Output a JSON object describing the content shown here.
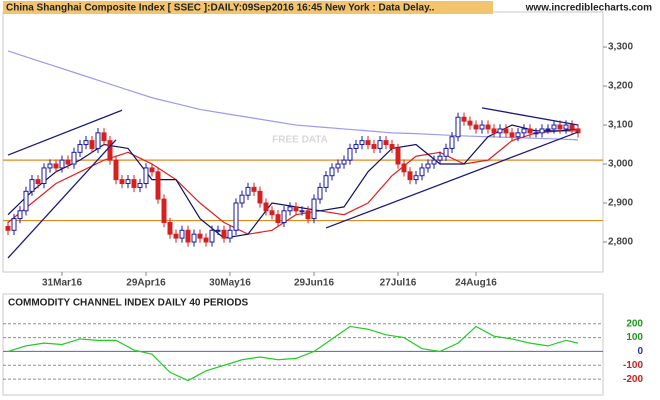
{
  "chart_data": {
    "type": "candlestick",
    "title": "China Shanghai Composite Index [ SSEC ]:DAILY:09Sep2016 16:45 New York : Data Delay..",
    "source": "www.incrediblecharts.com",
    "watermark": "FREE DATA",
    "categories": [
      null,
      null,
      null,
      null,
      null,
      null,
      null,
      null,
      null,
      "31Mar16",
      null,
      null,
      null,
      null,
      null,
      null,
      null,
      null,
      null,
      null,
      null,
      null,
      null,
      "29Apr16",
      null,
      null,
      null,
      null,
      null,
      null,
      null,
      null,
      null,
      null,
      null,
      null,
      null,
      "30May16",
      null,
      null,
      null,
      null,
      null,
      null,
      null,
      null,
      null,
      null,
      null,
      null,
      null,
      "29Jun16",
      null,
      null,
      null,
      null,
      null,
      null,
      null,
      null,
      null,
      null,
      null,
      null,
      null,
      "27Jul16",
      null,
      null,
      null,
      null,
      null,
      null,
      null,
      null,
      null,
      null,
      null,
      null,
      "24Aug16",
      null,
      null,
      null,
      null,
      null,
      null,
      null,
      null,
      null,
      null,
      null,
      null,
      null,
      null,
      null,
      null,
      null
    ],
    "open": [
      2840,
      2830,
      2860,
      2880,
      2930,
      2960,
      2950,
      2990,
      3000,
      2990,
      3010,
      3000,
      3030,
      3050,
      3060,
      3040,
      3080,
      3060,
      3010,
      2960,
      2950,
      2960,
      2940,
      2950,
      2990,
      2980,
      2910,
      2850,
      2820,
      2810,
      2830,
      2800,
      2820,
      2810,
      2800,
      2830,
      2830,
      2810,
      2830,
      2900,
      2920,
      2940,
      2930,
      2900,
      2880,
      2870,
      2850,
      2880,
      2890,
      2880,
      2880,
      2860,
      2910,
      2940,
      2970,
      2990,
      3000,
      3010,
      3040,
      3050,
      3060,
      3050,
      3040,
      3060,
      3050,
      3040,
      3000,
      2980,
      2960,
      2970,
      2990,
      3000,
      3010,
      3020,
      3040,
      3070,
      3120,
      3110,
      3100,
      3090,
      3100,
      3090,
      3080,
      3090,
      3080,
      3070,
      3080,
      3090,
      3080,
      3080,
      3090,
      3090,
      3100,
      3090,
      3100,
      3090
    ],
    "high": [
      2852,
      2872,
      2892,
      2942,
      2972,
      2972,
      3002,
      3012,
      3012,
      3022,
      3022,
      3042,
      3062,
      3072,
      3072,
      3092,
      3092,
      3072,
      3022,
      2972,
      2972,
      2972,
      2962,
      3002,
      3002,
      2992,
      2922,
      2862,
      2832,
      2842,
      2842,
      2832,
      2832,
      2822,
      2842,
      2842,
      2842,
      2842,
      2912,
      2932,
      2952,
      2952,
      2942,
      2912,
      2892,
      2882,
      2892,
      2902,
      2902,
      2892,
      2892,
      2922,
      2952,
      2982,
      3002,
      3012,
      3022,
      3052,
      3062,
      3072,
      3072,
      3062,
      3072,
      3072,
      3062,
      3052,
      3012,
      2992,
      2982,
      3002,
      3012,
      3022,
      3032,
      3052,
      3082,
      3132,
      3132,
      3122,
      3112,
      3112,
      3112,
      3102,
      3102,
      3102,
      3092,
      3092,
      3102,
      3102,
      3092,
      3102,
      3102,
      3112,
      3112,
      3112,
      3112,
      3102
    ],
    "low": [
      2818,
      2818,
      2848,
      2868,
      2918,
      2938,
      2938,
      2978,
      2978,
      2978,
      2988,
      2988,
      3018,
      3038,
      3028,
      3028,
      3048,
      2998,
      2948,
      2938,
      2938,
      2928,
      2928,
      2938,
      2968,
      2898,
      2838,
      2808,
      2798,
      2798,
      2788,
      2788,
      2798,
      2788,
      2788,
      2818,
      2798,
      2798,
      2818,
      2888,
      2908,
      2918,
      2888,
      2868,
      2858,
      2838,
      2838,
      2868,
      2868,
      2868,
      2848,
      2848,
      2898,
      2928,
      2958,
      2978,
      2988,
      2998,
      3028,
      3038,
      3038,
      3028,
      3028,
      3038,
      3028,
      2988,
      2968,
      2948,
      2948,
      2958,
      2978,
      2988,
      2998,
      3008,
      3028,
      3058,
      3098,
      3088,
      3078,
      3078,
      3078,
      3068,
      3068,
      3068,
      3058,
      3058,
      3068,
      3068,
      3068,
      3068,
      3078,
      3078,
      3078,
      3078,
      3078,
      3068
    ],
    "close": [
      2830,
      2860,
      2880,
      2930,
      2960,
      2950,
      2990,
      3000,
      2990,
      3010,
      3000,
      3030,
      3050,
      3060,
      3040,
      3080,
      3060,
      3010,
      2960,
      2950,
      2960,
      2940,
      2950,
      2990,
      2980,
      2910,
      2850,
      2820,
      2810,
      2830,
      2800,
      2820,
      2810,
      2800,
      2830,
      2830,
      2810,
      2830,
      2900,
      2920,
      2940,
      2930,
      2900,
      2880,
      2870,
      2850,
      2880,
      2890,
      2880,
      2880,
      2860,
      2910,
      2940,
      2970,
      2990,
      3000,
      3010,
      3040,
      3050,
      3060,
      3050,
      3040,
      3060,
      3050,
      3040,
      3000,
      2980,
      2960,
      2970,
      2990,
      3000,
      3010,
      3020,
      3040,
      3070,
      3120,
      3110,
      3100,
      3090,
      3100,
      3090,
      3080,
      3090,
      3080,
      3070,
      3080,
      3090,
      3080,
      3080,
      3090,
      3090,
      3100,
      3090,
      3100,
      3090,
      3080
    ],
    "up_color": "#1a1aa6",
    "down_color": "#d42020",
    "overlays": [
      {
        "color": "#9a9af0",
        "x": [
          0,
          4,
          8,
          12,
          16,
          20,
          24,
          28,
          32,
          36,
          40,
          44,
          48,
          52,
          56,
          60,
          64,
          68,
          72,
          76,
          80,
          84,
          88,
          92,
          95
        ],
        "values": [
          3290,
          3270,
          3250,
          3230,
          3210,
          3190,
          3170,
          3155,
          3140,
          3130,
          3120,
          3110,
          3100,
          3095,
          3090,
          3085,
          3080,
          3078,
          3075,
          3072,
          3070,
          3068,
          3066,
          3064,
          3062
        ]
      },
      {
        "color": "#e02020",
        "x": [
          0,
          4,
          8,
          12,
          16,
          20,
          24,
          28,
          32,
          36,
          40,
          44,
          48,
          52,
          56,
          60,
          64,
          68,
          72,
          76,
          80,
          84,
          88,
          92,
          95
        ],
        "values": [
          2850,
          2900,
          2950,
          2980,
          3010,
          3030,
          3000,
          2960,
          2900,
          2850,
          2820,
          2830,
          2870,
          2880,
          2870,
          2900,
          2970,
          3020,
          3030,
          3000,
          3010,
          3060,
          3080,
          3085,
          3085
        ]
      },
      {
        "color": "#101060",
        "x": [
          0,
          4,
          8,
          12,
          16,
          20,
          24,
          28,
          32,
          36,
          40,
          44,
          48,
          52,
          56,
          60,
          64,
          68,
          72,
          76,
          80,
          84,
          88,
          92,
          95
        ],
        "values": [
          2870,
          2930,
          2980,
          3010,
          3050,
          3040,
          2960,
          2960,
          2860,
          2810,
          2820,
          2900,
          2890,
          2880,
          2890,
          2980,
          3040,
          3050,
          3000,
          3000,
          3070,
          3100,
          3085,
          3085,
          3090
        ]
      }
    ],
    "trendlines": [
      {
        "color": "#1a1a80",
        "x": [
          0,
          19
        ],
        "values": [
          3023,
          3138
        ]
      },
      {
        "color": "#1a1a80",
        "x": [
          0,
          18
        ],
        "values": [
          2759,
          3062
        ]
      },
      {
        "color": "#1a1a80",
        "x": [
          53,
          95
        ],
        "values": [
          2836,
          3082
        ]
      },
      {
        "color": "#1a1a80",
        "x": [
          79,
          95
        ],
        "values": [
          3144,
          3100
        ]
      }
    ],
    "levels": [
      3010,
      2855
    ],
    "level_color": "#e08a1e",
    "ylim": [
      2723,
      3390
    ],
    "yticks": [
      {
        "value": 2800,
        "label": "2,800"
      },
      {
        "value": 2900,
        "label": "2,900"
      },
      {
        "value": 3000,
        "label": "3,000"
      },
      {
        "value": 3100,
        "label": "3,100"
      },
      {
        "value": 3200,
        "label": "3,200"
      },
      {
        "value": 3300,
        "label": "3,300"
      }
    ],
    "indicator": {
      "title": "COMMODITY CHANNEL INDEX DAILY 40 PERIODS",
      "color": "#22cc22",
      "x": [
        0,
        3,
        6,
        9,
        12,
        15,
        18,
        21,
        24,
        27,
        30,
        33,
        36,
        39,
        42,
        45,
        48,
        51,
        54,
        57,
        60,
        63,
        66,
        69,
        72,
        75,
        78,
        81,
        84,
        87,
        90,
        93,
        95
      ],
      "values": [
        0,
        40,
        60,
        50,
        90,
        80,
        80,
        10,
        -20,
        -150,
        -210,
        -140,
        -100,
        -60,
        -40,
        -60,
        -50,
        0,
        90,
        180,
        160,
        120,
        100,
        20,
        0,
        60,
        180,
        110,
        90,
        60,
        40,
        80,
        60
      ],
      "ylim": [
        -314,
        414
      ],
      "yticks": [
        200,
        100,
        0,
        -100,
        -200
      ]
    }
  }
}
